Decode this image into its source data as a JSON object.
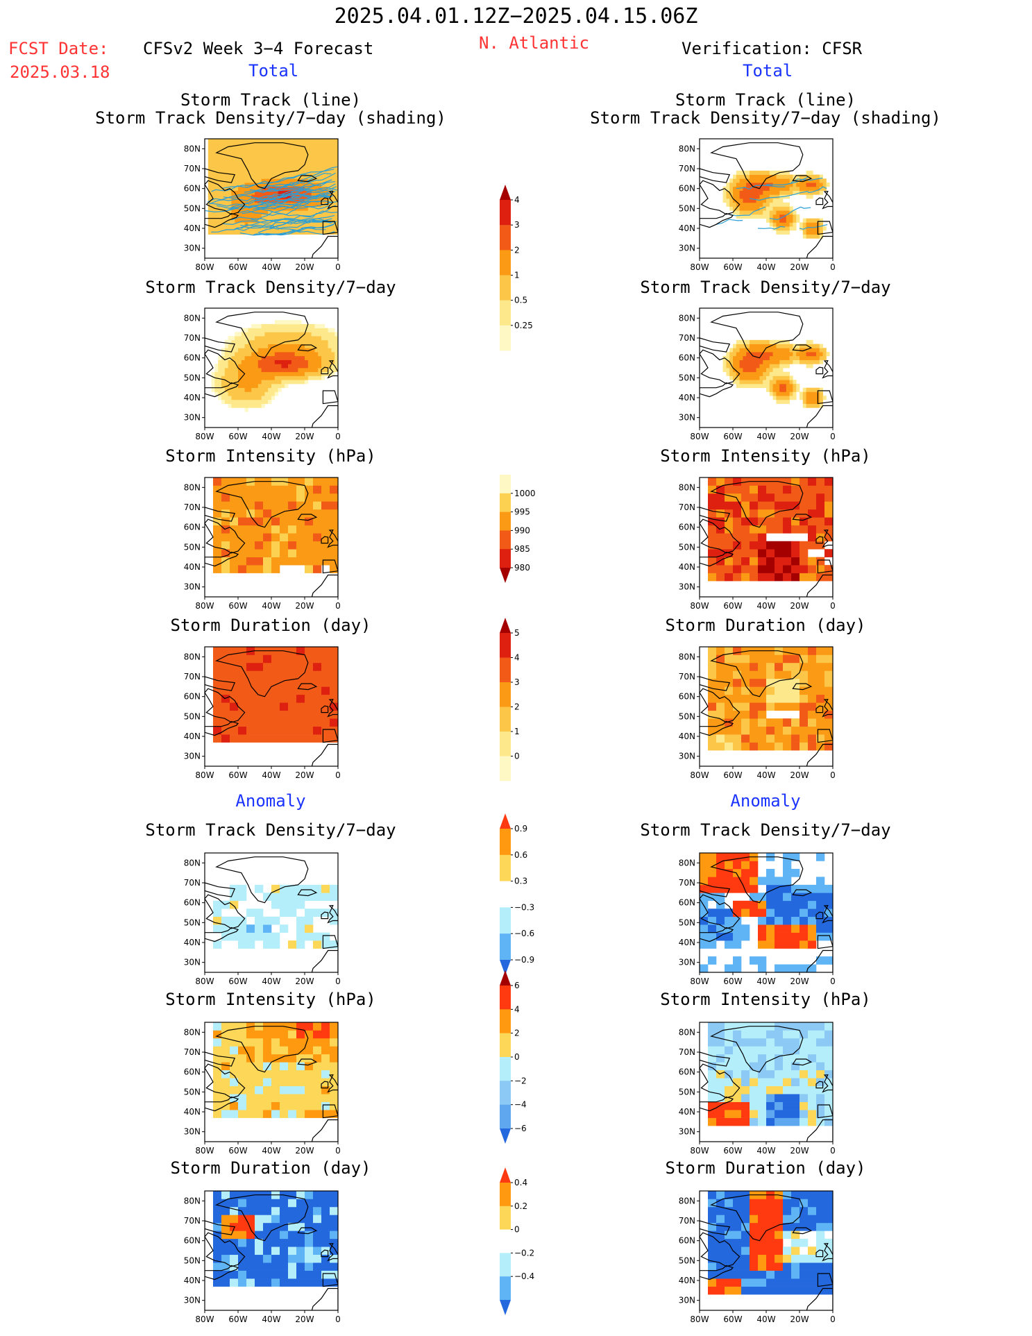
{
  "header": {
    "period": "2025.04.01.12Z−2025.04.15.06Z",
    "fcst_label": "FCST Date:",
    "fcst_date": "2025.03.18",
    "model": "CFSv2 Week 3−4 Forecast",
    "region": "N. Atlantic",
    "verification": "Verification: CFSR",
    "left_total": "Total",
    "right_total": "Total",
    "left_anomaly": "Anomaly",
    "right_anomaly": "Anomaly"
  },
  "panel_titles": {
    "track_line": "Storm Track (line)",
    "track_shading": "Storm Track Density/7−day (shading)",
    "density": "Storm Track Density/7−day",
    "intensity": "Storm Intensity (hPa)",
    "duration": "Storm Duration (day)"
  },
  "chart_data": [
    {
      "type": "heatmap",
      "axes": {
        "x_ticks": [
          "80W",
          "60W",
          "40W",
          "20W",
          "0"
        ],
        "y_ticks": [
          "80N",
          "70N",
          "60N",
          "50N",
          "40N",
          "30N"
        ],
        "xlim": [
          -80,
          0
        ],
        "ylim": [
          25,
          85
        ]
      },
      "panels": [
        {
          "id": "fc-track",
          "column": "CFSv2",
          "title": "Storm Track (line) / Storm Track Density/7-day (shading)",
          "colorbar": "density"
        },
        {
          "id": "fc-density",
          "column": "CFSv2",
          "title": "Storm Track Density/7-day",
          "colorbar": "density"
        },
        {
          "id": "fc-intensity",
          "column": "CFSv2",
          "title": "Storm Intensity (hPa)",
          "colorbar": "intensity"
        },
        {
          "id": "fc-duration",
          "column": "CFSv2",
          "title": "Storm Duration (day)",
          "colorbar": "duration"
        },
        {
          "id": "fc-density-anom",
          "column": "CFSv2",
          "title": "Storm Track Density/7-day",
          "colorbar": "density_anom"
        },
        {
          "id": "fc-intensity-anom",
          "column": "CFSv2",
          "title": "Storm Intensity (hPa)",
          "colorbar": "intensity_anom"
        },
        {
          "id": "fc-duration-anom",
          "column": "CFSv2",
          "title": "Storm Duration (day)",
          "colorbar": "duration_anom"
        },
        {
          "id": "cfsr-track",
          "column": "CFSR",
          "title": "Storm Track (line) / Storm Track Density/7-day (shading)",
          "colorbar": "density"
        },
        {
          "id": "cfsr-density",
          "column": "CFSR",
          "title": "Storm Track Density/7-day",
          "colorbar": "density"
        },
        {
          "id": "cfsr-intensity",
          "column": "CFSR",
          "title": "Storm Intensity (hPa)",
          "colorbar": "intensity"
        },
        {
          "id": "cfsr-duration",
          "column": "CFSR",
          "title": "Storm Duration (day)",
          "colorbar": "duration"
        },
        {
          "id": "cfsr-density-anom",
          "column": "CFSR",
          "title": "Storm Track Density/7-day",
          "colorbar": "density_anom"
        },
        {
          "id": "cfsr-intensity-anom",
          "column": "CFSR",
          "title": "Storm Intensity (hPa)",
          "colorbar": "intensity_anom"
        },
        {
          "id": "cfsr-duration-anom",
          "column": "CFSR",
          "title": "Storm Duration (day)",
          "colorbar": "duration_anom"
        }
      ]
    }
  ],
  "colorbars": {
    "density": {
      "labels": [
        "4",
        "3",
        "2",
        "1",
        "0.5",
        "0.25"
      ],
      "colors": [
        "#a50000",
        "#dd2010",
        "#f25a18",
        "#fb9a14",
        "#fcc648",
        "#fde98c",
        "#fef8c4"
      ],
      "triangle_top": true,
      "triangle_bottom": false
    },
    "intensity": {
      "labels": [
        "1000",
        "995",
        "990",
        "985",
        "980"
      ],
      "colors": [
        "#fef8c4",
        "#fcd050",
        "#fb9a14",
        "#f25a18",
        "#dd2010",
        "#a50000"
      ],
      "triangle_top": false,
      "triangle_bottom": true
    },
    "duration": {
      "labels": [
        "5",
        "4",
        "3",
        "2",
        "1",
        "0"
      ],
      "colors": [
        "#a50000",
        "#dd2010",
        "#f25a18",
        "#fb9a14",
        "#fcc648",
        "#fde98c",
        "#fef8c4"
      ],
      "triangle_top": true,
      "triangle_bottom": false
    },
    "density_anom": {
      "labels": [
        "0.9",
        "0.6",
        "0.3",
        "−0.3",
        "−0.6",
        "−0.9"
      ],
      "colors": [
        "#ff3a10",
        "#ff9a10",
        "#fdd858",
        "#ffffff",
        "#b4eefa",
        "#5fb4f5",
        "#2468dd"
      ],
      "triangle_top": true,
      "triangle_bottom": true
    },
    "intensity_anom": {
      "labels": [
        "6",
        "4",
        "2",
        "0",
        "−2",
        "−4",
        "−6"
      ],
      "colors": [
        "#a50000",
        "#ff3a10",
        "#ff9a10",
        "#fdd858",
        "#b4eefa",
        "#8ccaf5",
        "#5fa8f0",
        "#2468dd"
      ],
      "triangle_top": true,
      "triangle_bottom": true
    },
    "duration_anom": {
      "labels": [
        "0.4",
        "0.2",
        "0",
        "−0.2",
        "−0.4"
      ],
      "colors": [
        "#ff3a10",
        "#ff9a10",
        "#fdd858",
        "#ffffff",
        "#b4eefa",
        "#5fb4f5",
        "#2468dd"
      ],
      "triangle_top": true,
      "triangle_bottom": true
    }
  },
  "colors": {
    "title_red": "#ff3333",
    "label_blue": "#1a33ff",
    "track_line": "#2a9fd6"
  }
}
